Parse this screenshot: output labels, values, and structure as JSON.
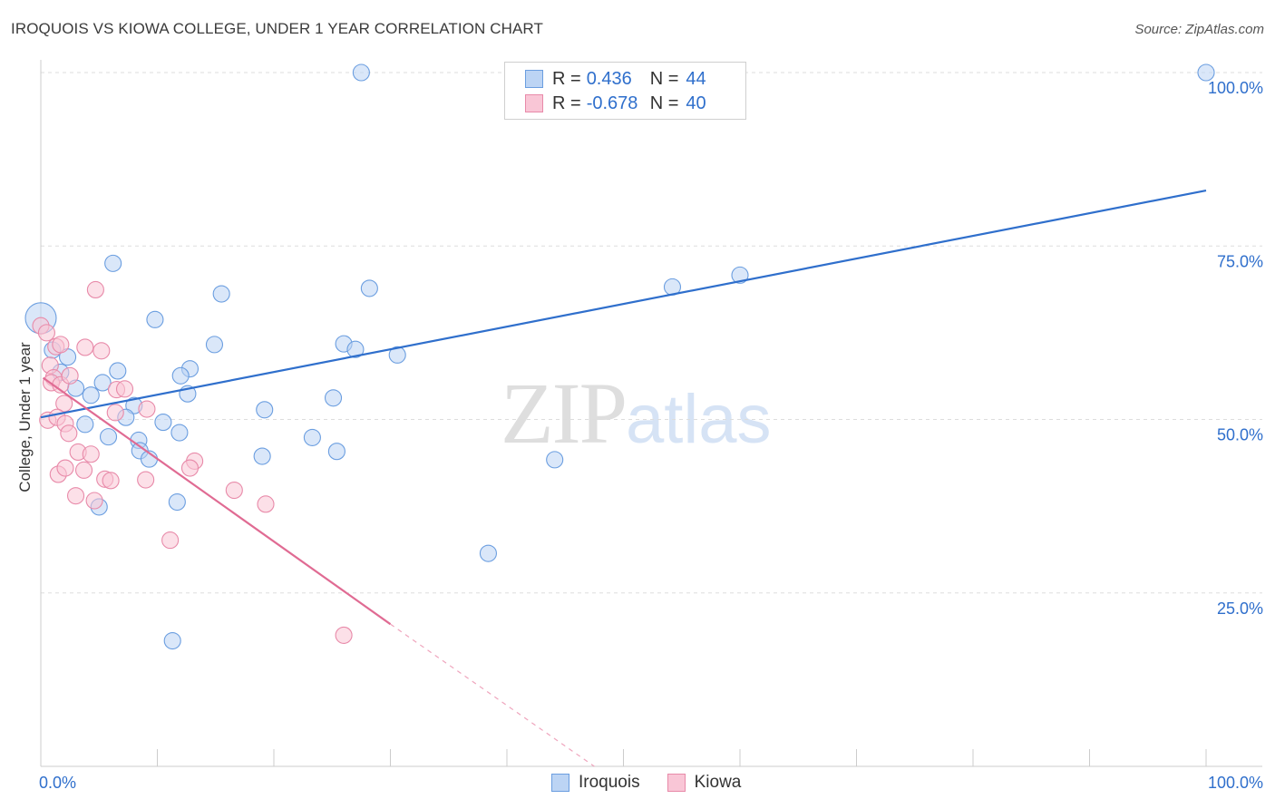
{
  "title": "IROQUOIS VS KIOWA COLLEGE, UNDER 1 YEAR CORRELATION CHART",
  "source": "Source: ZipAtlas.com",
  "watermark": {
    "zip": "ZIP",
    "atlas": "atlas"
  },
  "legend": {
    "r_label": "R =",
    "n_label": "N =",
    "rows": [
      {
        "name": "Iroquois",
        "r": "0.436",
        "n": "44"
      },
      {
        "name": "Kiowa",
        "r": "-0.678",
        "n": "40"
      }
    ]
  },
  "colors": {
    "blue": "#2f6fcc",
    "pink": "#e06b93",
    "blue_fill": "#bcd4f4",
    "pink_fill": "#f9c6d6"
  },
  "chart_data": {
    "type": "scatter",
    "title": "IROQUOIS VS KIOWA COLLEGE, UNDER 1 YEAR CORRELATION CHART",
    "xlabel": "",
    "ylabel": "College, Under 1 year",
    "xlim": [
      0,
      100
    ],
    "ylim": [
      0,
      100
    ],
    "x_tick_labels": [
      "0.0%",
      "100.0%"
    ],
    "y_tick_labels": [
      {
        "value": 100,
        "label": "100.0%"
      },
      {
        "value": 75,
        "label": "75.0%"
      },
      {
        "value": 50,
        "label": "50.0%"
      },
      {
        "value": 25,
        "label": "25.0%"
      }
    ],
    "series": [
      {
        "name": "Iroquois",
        "color": "#2f6fcc",
        "points": [
          [
            0.0,
            64.6
          ],
          [
            27.5,
            100.0
          ],
          [
            100.0,
            100.0
          ],
          [
            6.2,
            72.5
          ],
          [
            9.8,
            64.4
          ],
          [
            15.5,
            68.1
          ],
          [
            14.9,
            60.8
          ],
          [
            1.0,
            60.0
          ],
          [
            2.3,
            59.0
          ],
          [
            1.7,
            56.8
          ],
          [
            6.6,
            57.0
          ],
          [
            5.3,
            55.3
          ],
          [
            3.0,
            54.5
          ],
          [
            4.3,
            53.5
          ],
          [
            8.0,
            52.0
          ],
          [
            12.8,
            57.3
          ],
          [
            12.0,
            56.3
          ],
          [
            12.6,
            53.7
          ],
          [
            7.3,
            50.3
          ],
          [
            10.5,
            49.6
          ],
          [
            3.8,
            49.3
          ],
          [
            5.8,
            47.5
          ],
          [
            8.4,
            47.0
          ],
          [
            8.5,
            45.5
          ],
          [
            9.3,
            44.3
          ],
          [
            11.9,
            48.1
          ],
          [
            19.2,
            51.4
          ],
          [
            19.0,
            44.7
          ],
          [
            23.3,
            47.4
          ],
          [
            25.4,
            45.4
          ],
          [
            25.1,
            53.1
          ],
          [
            26.0,
            60.9
          ],
          [
            27.0,
            60.1
          ],
          [
            28.2,
            68.9
          ],
          [
            30.6,
            59.3
          ],
          [
            11.7,
            38.1
          ],
          [
            5.0,
            37.4
          ],
          [
            11.3,
            18.1
          ],
          [
            38.4,
            30.7
          ],
          [
            44.1,
            44.2
          ],
          [
            54.2,
            69.1
          ],
          [
            60.0,
            70.8
          ]
        ],
        "trend": {
          "x1": 0.0,
          "y1": 50.3,
          "x2": 100.0,
          "y2": 83.0
        }
      },
      {
        "name": "Kiowa",
        "color": "#e06b93",
        "points": [
          [
            0.0,
            63.5
          ],
          [
            0.5,
            62.5
          ],
          [
            1.3,
            60.5
          ],
          [
            1.7,
            60.8
          ],
          [
            0.8,
            57.8
          ],
          [
            1.1,
            56.0
          ],
          [
            0.9,
            55.3
          ],
          [
            1.7,
            55.0
          ],
          [
            2.5,
            56.3
          ],
          [
            4.7,
            68.7
          ],
          [
            3.8,
            60.4
          ],
          [
            5.2,
            59.9
          ],
          [
            2.0,
            52.3
          ],
          [
            0.6,
            49.9
          ],
          [
            1.4,
            50.3
          ],
          [
            2.1,
            49.4
          ],
          [
            2.4,
            48.0
          ],
          [
            6.5,
            54.3
          ],
          [
            7.2,
            54.4
          ],
          [
            6.4,
            51.0
          ],
          [
            9.1,
            51.5
          ],
          [
            3.2,
            45.3
          ],
          [
            4.3,
            45.0
          ],
          [
            1.5,
            42.1
          ],
          [
            2.1,
            43.0
          ],
          [
            3.7,
            42.7
          ],
          [
            5.5,
            41.4
          ],
          [
            6.0,
            41.2
          ],
          [
            9.0,
            41.3
          ],
          [
            13.2,
            44.0
          ],
          [
            12.8,
            43.0
          ],
          [
            16.6,
            39.8
          ],
          [
            3.0,
            39.0
          ],
          [
            4.6,
            38.3
          ],
          [
            19.3,
            37.8
          ],
          [
            11.1,
            32.6
          ],
          [
            26.0,
            18.9
          ]
        ],
        "trend": {
          "x1": 0.2,
          "y1": 56.0,
          "x2": 30.0,
          "y2": 20.5
        },
        "trend_extension": {
          "x1": 30.0,
          "y1": 20.5,
          "x2": 47.5,
          "y2": 0.0
        }
      }
    ]
  }
}
